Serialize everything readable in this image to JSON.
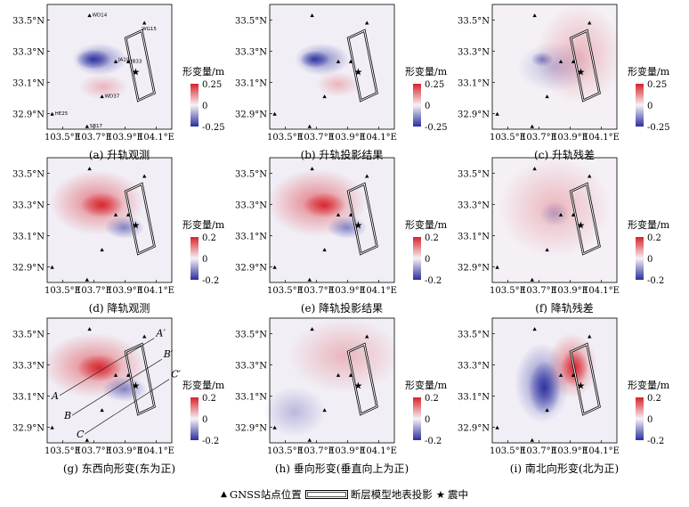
{
  "figure": {
    "x_ticks": [
      "103.5°E",
      "103.7°E",
      "103.9°E",
      "104.1°E"
    ],
    "y_ticks": [
      "33.5°N",
      "33.3°N",
      "33.1°N",
      "32.9°N"
    ],
    "colorbar_label": "形变量/m",
    "colors": {
      "neg": "#2b2f9e",
      "zero": "#f6f2f6",
      "pos": "#d8222a"
    }
  },
  "chart_data": [
    {
      "type": "heatmap",
      "id": "a",
      "caption": "(a) 升轨观测",
      "clim": [
        -0.25,
        0.25
      ],
      "clim_labels": [
        "0.25",
        "0",
        "-0.25"
      ],
      "gnss_labels": [
        "WD14",
        "WG15",
        "JA10",
        "JB33",
        "WD37",
        "HE25",
        "SB17"
      ],
      "xlim": [
        103.4,
        104.2
      ],
      "ylim": [
        32.8,
        33.6
      ]
    },
    {
      "type": "heatmap",
      "id": "b",
      "caption": "(b) 升轨投影结果",
      "clim": [
        -0.25,
        0.25
      ],
      "clim_labels": [
        "0.25",
        "0",
        "-0.25"
      ],
      "xlim": [
        103.4,
        104.2
      ],
      "ylim": [
        32.8,
        33.6
      ]
    },
    {
      "type": "heatmap",
      "id": "c",
      "caption": "(c) 升轨残差",
      "clim": [
        -0.25,
        0.25
      ],
      "clim_labels": [
        "0.25",
        "0",
        "-0.25"
      ],
      "xlim": [
        103.4,
        104.2
      ],
      "ylim": [
        32.8,
        33.6
      ]
    },
    {
      "type": "heatmap",
      "id": "d",
      "caption": "(d) 降轨观测",
      "clim": [
        -0.2,
        0.2
      ],
      "clim_labels": [
        "0.2",
        "0",
        "-0.2"
      ],
      "xlim": [
        103.4,
        104.2
      ],
      "ylim": [
        32.8,
        33.6
      ]
    },
    {
      "type": "heatmap",
      "id": "e",
      "caption": "(e) 降轨投影结果",
      "clim": [
        -0.2,
        0.2
      ],
      "clim_labels": [
        "0.2",
        "0",
        "-0.2"
      ],
      "xlim": [
        103.4,
        104.2
      ],
      "ylim": [
        32.8,
        33.6
      ]
    },
    {
      "type": "heatmap",
      "id": "f",
      "caption": "(f) 降轨残差",
      "clim": [
        -0.2,
        0.2
      ],
      "clim_labels": [
        "0.2",
        "0",
        "-0.2"
      ],
      "xlim": [
        103.4,
        104.2
      ],
      "ylim": [
        32.8,
        33.6
      ]
    },
    {
      "type": "heatmap",
      "id": "g",
      "caption": "(g) 东西向形变(东为正)",
      "clim": [
        -0.2,
        0.2
      ],
      "clim_labels": [
        "0.2",
        "0",
        "-0.2"
      ],
      "profile_labels": [
        "A",
        "A′",
        "B",
        "B′",
        "C",
        "C′"
      ],
      "xlim": [
        103.4,
        104.2
      ],
      "ylim": [
        32.8,
        33.6
      ]
    },
    {
      "type": "heatmap",
      "id": "h",
      "caption": "(h) 垂向形变(垂直向上为正)",
      "clim": [
        -0.2,
        0.2
      ],
      "clim_labels": [
        "0.2",
        "0",
        "-0.2"
      ],
      "xlim": [
        103.4,
        104.2
      ],
      "ylim": [
        32.8,
        33.6
      ]
    },
    {
      "type": "heatmap",
      "id": "i",
      "caption": "(i) 南北向形变(北为正)",
      "clim": [
        -0.2,
        0.2
      ],
      "clim_labels": [
        "0.2",
        "0",
        "-0.2"
      ],
      "xlim": [
        103.4,
        104.2
      ],
      "ylim": [
        32.8,
        33.6
      ]
    }
  ],
  "legend": {
    "gnss_label": "GNSS站点位置",
    "fault_label": "断层模型地表投影",
    "epicenter_label": "震中",
    "triangle_glyph": "▲",
    "star_glyph": "★"
  }
}
